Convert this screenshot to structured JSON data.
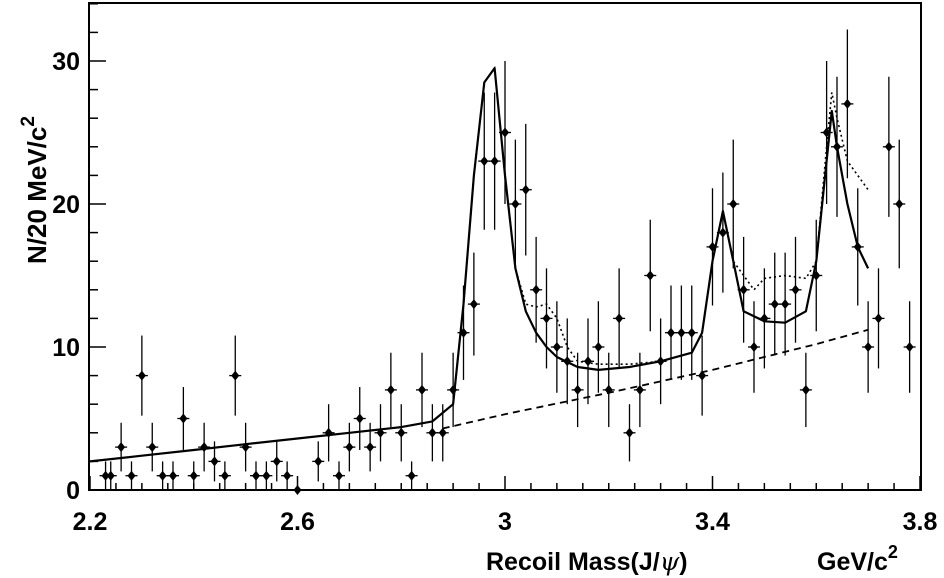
{
  "chart_data": {
    "type": "scatter",
    "xlabel_main": "Recoil Mass(J/",
    "xlabel_psi": "ψ",
    "xlabel_close": ")",
    "xunit_main": "GeV/c",
    "xunit_exp": "2",
    "ylabel_main": "N/20 MeV/c",
    "ylabel_exp": "2",
    "xlim": [
      2.2,
      3.8
    ],
    "ylim": [
      0,
      34
    ],
    "xticks": [
      2.2,
      2.6,
      3.0,
      3.4,
      3.8
    ],
    "xtick_labels": [
      "2.2",
      "2.6",
      "3",
      "3.4",
      "3.8"
    ],
    "yticks": [
      0,
      10,
      20,
      30
    ],
    "ytick_labels": [
      "0",
      "10",
      "20",
      "30"
    ],
    "grid": false,
    "series": [
      {
        "style": "points-with-errors",
        "x": [
          2.23,
          2.24,
          2.26,
          2.28,
          2.3,
          2.32,
          2.34,
          2.36,
          2.38,
          2.4,
          2.42,
          2.44,
          2.46,
          2.48,
          2.5,
          2.52,
          2.54,
          2.56,
          2.58,
          2.6,
          2.64,
          2.66,
          2.68,
          2.7,
          2.72,
          2.74,
          2.76,
          2.78,
          2.8,
          2.82,
          2.84,
          2.86,
          2.88,
          2.9,
          2.92,
          2.94,
          2.96,
          2.98,
          3.0,
          3.02,
          3.04,
          3.06,
          3.08,
          3.1,
          3.12,
          3.14,
          3.16,
          3.18,
          3.2,
          3.22,
          3.24,
          3.26,
          3.28,
          3.3,
          3.32,
          3.34,
          3.36,
          3.38,
          3.4,
          3.42,
          3.44,
          3.46,
          3.48,
          3.5,
          3.52,
          3.54,
          3.56,
          3.58,
          3.6,
          3.62,
          3.64,
          3.66,
          3.68,
          3.7,
          3.72,
          3.74,
          3.76,
          3.78
        ],
        "y": [
          1,
          1,
          3,
          1,
          8,
          3,
          1,
          1,
          5,
          1,
          3,
          2,
          1,
          8,
          3,
          1,
          1,
          2,
          1,
          0,
          2,
          4,
          1,
          3,
          5,
          3,
          4,
          7,
          4,
          1,
          7,
          4,
          4,
          7,
          11,
          13,
          23,
          23,
          25,
          20,
          21,
          14,
          12,
          10,
          9,
          7,
          9,
          10,
          7,
          12,
          4,
          7,
          15,
          9,
          11,
          11,
          11,
          8,
          17,
          18,
          20,
          14,
          10,
          12,
          13,
          13,
          14,
          7,
          15,
          25,
          24,
          27,
          17,
          10,
          12,
          24,
          20,
          10
        ],
        "err": [
          1,
          1,
          1.7,
          1,
          2.8,
          1.7,
          1,
          1,
          2.2,
          1,
          1.7,
          1.4,
          1,
          2.8,
          1.7,
          1,
          1,
          1.4,
          1,
          0,
          1.4,
          2,
          1,
          1.7,
          2.2,
          1.7,
          2,
          2.6,
          2,
          1,
          2.6,
          2,
          2,
          2.6,
          3.3,
          3.6,
          4.8,
          4.8,
          5,
          4.5,
          4.6,
          3.7,
          3.5,
          3.2,
          3,
          2.6,
          3,
          3.2,
          2.6,
          3.5,
          2,
          2.6,
          3.9,
          3,
          3.3,
          3.3,
          3.3,
          2.8,
          4.1,
          4.2,
          4.5,
          3.7,
          3.2,
          3.5,
          3.6,
          3.6,
          3.7,
          2.6,
          3.9,
          5,
          4.9,
          5.2,
          4.1,
          3.2,
          3.5,
          4.9,
          4.5,
          3.2
        ]
      },
      {
        "style": "solid-fit",
        "x": [
          2.2,
          2.3,
          2.4,
          2.5,
          2.6,
          2.7,
          2.8,
          2.86,
          2.9,
          2.92,
          2.94,
          2.96,
          2.98,
          3.0,
          3.02,
          3.04,
          3.06,
          3.08,
          3.1,
          3.14,
          3.18,
          3.24,
          3.3,
          3.36,
          3.38,
          3.4,
          3.42,
          3.44,
          3.46,
          3.5,
          3.54,
          3.58,
          3.6,
          3.62,
          3.63,
          3.64,
          3.66,
          3.68,
          3.7
        ],
        "y": [
          2.0,
          2.4,
          2.8,
          3.2,
          3.6,
          4.0,
          4.4,
          4.8,
          6.0,
          13.0,
          22.0,
          28.5,
          29.5,
          22.0,
          15.5,
          12.5,
          11.0,
          10.0,
          9.3,
          8.6,
          8.4,
          8.6,
          9.0,
          9.6,
          11.0,
          16.0,
          19.5,
          16.0,
          12.5,
          11.8,
          11.7,
          12.5,
          16.0,
          23.0,
          26.5,
          24.0,
          20.0,
          17.0,
          15.5
        ]
      },
      {
        "style": "dotted-fit",
        "x": [
          2.9,
          2.92,
          2.94,
          2.96,
          2.98,
          3.0,
          3.02,
          3.04,
          3.06,
          3.08,
          3.1,
          3.12,
          3.14,
          3.18,
          3.24,
          3.3,
          3.36,
          3.38,
          3.4,
          3.42,
          3.44,
          3.48,
          3.5,
          3.54,
          3.58,
          3.6,
          3.62,
          3.63,
          3.64,
          3.66,
          3.7
        ],
        "y": [
          6.0,
          13.0,
          22.0,
          28.5,
          29.5,
          22.0,
          15.5,
          13.0,
          12.8,
          13.0,
          12.0,
          10.0,
          9.0,
          8.8,
          8.8,
          9.0,
          9.6,
          11.0,
          16.0,
          19.5,
          16.0,
          14.0,
          14.8,
          15.0,
          14.8,
          16.0,
          24.0,
          27.8,
          26.0,
          23.0,
          21.0
        ]
      },
      {
        "style": "dashed-background",
        "x": [
          2.88,
          3.0,
          3.2,
          3.4,
          3.6,
          3.7
        ],
        "y": [
          4.3,
          5.3,
          6.8,
          8.4,
          10.2,
          11.2
        ]
      }
    ]
  }
}
